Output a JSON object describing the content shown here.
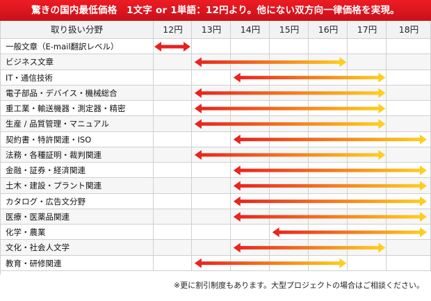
{
  "banner": "驚きの国内最低価格　1文字 or 1単語：12円より。他にない双方向一律価格を実現。",
  "header": {
    "field_label": "取り扱い分野",
    "prices": [
      "12円",
      "13円",
      "14円",
      "15円",
      "16円",
      "17円",
      "18円"
    ]
  },
  "colors": {
    "banner": "#d7141e",
    "arrow_start": "#e8201f",
    "arrow_end": "#ffd21f",
    "small_arrow": "#e8201f"
  },
  "rows": [
    {
      "label": "一般文章（E-mail翻訳レベル）",
      "from": 12,
      "to": 13
    },
    {
      "label": "ビジネス文章",
      "from": 13,
      "to": 16.5
    },
    {
      "label": "IT・通信技術",
      "from": 14,
      "to": 17.5
    },
    {
      "label": "電子部品・デバイス・機械総合",
      "from": 13,
      "to": 17.5
    },
    {
      "label": "重工業・輸送機器・測定器・精密",
      "from": 13,
      "to": 17.5
    },
    {
      "label": "生産 / 品質管理・マニュアル",
      "from": 13,
      "to": 17.5
    },
    {
      "label": "契約書・特許関連・ISO",
      "from": 14,
      "to": 18.5
    },
    {
      "label": "法務・各種証明・裁判関連",
      "from": 13,
      "to": 17.5
    },
    {
      "label": "金融・証券・経済関連",
      "from": 14,
      "to": 18.5
    },
    {
      "label": "土木・建設・プラント関連",
      "from": 14,
      "to": 18.5
    },
    {
      "label": "カタログ・広告文分野",
      "from": 14,
      "to": 18.5
    },
    {
      "label": "医療・医薬品関連",
      "from": 14,
      "to": 18.5
    },
    {
      "label": "化学・農業",
      "from": 15,
      "to": 18.5
    },
    {
      "label": "文化・社会人文学",
      "from": 14,
      "to": 17.5
    },
    {
      "label": "教育・研修関連",
      "from": 13,
      "to": 16.5
    }
  ],
  "footnote": "※更に割引制度もあります。大型プロジェクトの場合はご相談ください。"
}
